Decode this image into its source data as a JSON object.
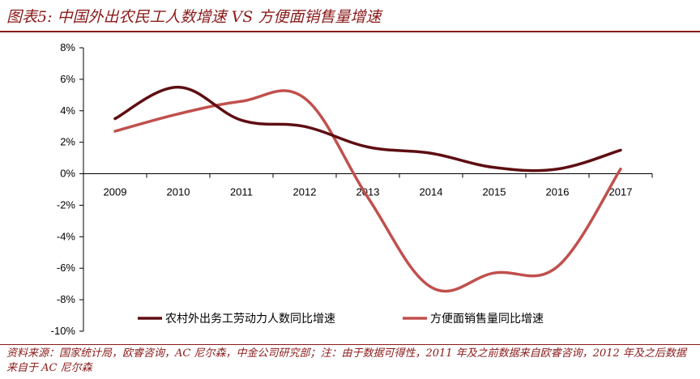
{
  "title": "图表5:  中国外出农民工人数增速 VS 方便面销售量增速",
  "source": "资料来源：国家统计局，欧睿咨询，AC 尼尔森，中金公司研究部；注：由于数据可得性，2011 年及之前数据来自欧睿咨询，2012 年及之后数据来自于 AC 尼尔森",
  "chart_data": {
    "type": "line",
    "categories": [
      "2009",
      "2010",
      "2011",
      "2012",
      "2013",
      "2014",
      "2015",
      "2016",
      "2017"
    ],
    "ylim": [
      -10,
      8
    ],
    "yticks": [
      "8%",
      "6%",
      "4%",
      "2%",
      "0%",
      "-2%",
      "-4%",
      "-6%",
      "-8%",
      "-10%"
    ],
    "series": [
      {
        "name": "农村外出务工劳动力人数同比增速",
        "color": "#5e0e12",
        "values": [
          3.5,
          5.5,
          3.4,
          3.0,
          1.7,
          1.3,
          0.4,
          0.3,
          1.5
        ]
      },
      {
        "name": "方便面销售量同比增速",
        "color": "#c0504d",
        "values": [
          2.7,
          3.8,
          4.6,
          4.8,
          -1.5,
          -7.2,
          -6.3,
          -5.9,
          0.3
        ]
      }
    ]
  }
}
